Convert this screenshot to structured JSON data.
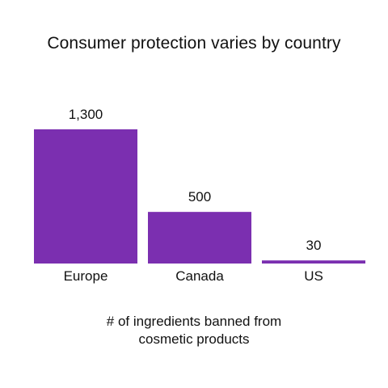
{
  "chart_data": {
    "type": "bar",
    "title": "Consumer protection varies by country",
    "categories": [
      "Europe",
      "Canada",
      "US"
    ],
    "values": [
      1300,
      500,
      30
    ],
    "value_labels": [
      "1,300",
      "500",
      "30"
    ],
    "caption_lines": [
      "# of ingredients banned from",
      "cosmetic products"
    ],
    "xlabel": "",
    "ylabel": "",
    "ylim": [
      0,
      1300
    ],
    "grid": false,
    "legend": "none",
    "bar_color": "#7b2fb0"
  }
}
